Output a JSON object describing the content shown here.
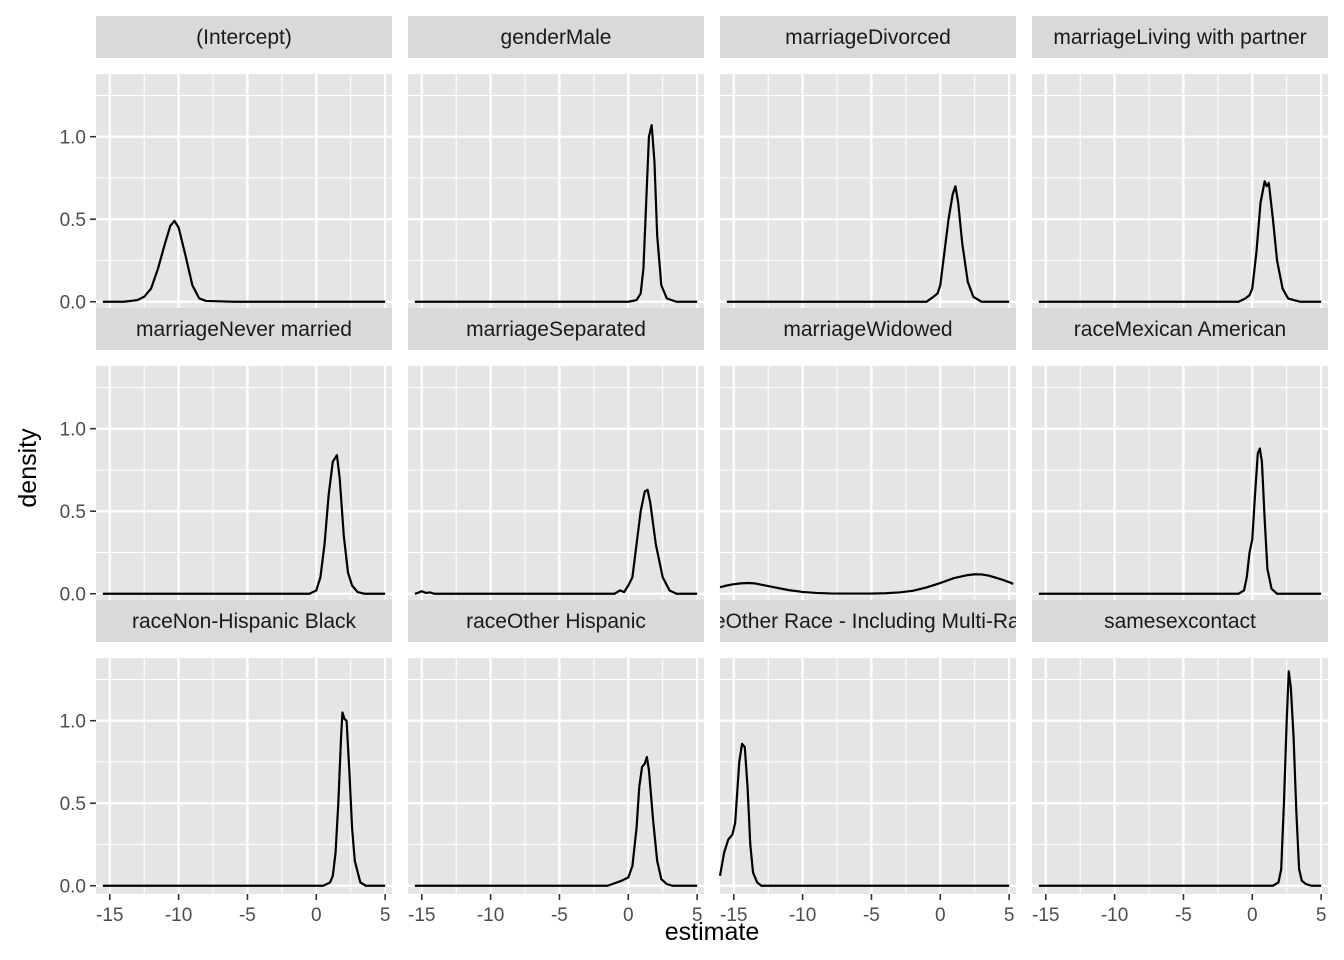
{
  "chart_data": {
    "type": "line",
    "subtype": "faceted-density",
    "xlabel": "estimate",
    "ylabel": "density",
    "xlim": [
      -16,
      5.5
    ],
    "ylim": [
      -0.05,
      1.38
    ],
    "x_ticks": [
      -15,
      -10,
      -5,
      0,
      5
    ],
    "x_tick_labels": [
      "-15",
      "-10",
      "-5",
      "0",
      "5"
    ],
    "y_ticks": [
      0,
      0.5,
      1
    ],
    "y_tick_labels": [
      "0.0",
      "0.5",
      "1.0"
    ],
    "grid": true,
    "panel_background": "#e5e5e5",
    "strip_background": "#d9d9d9",
    "grid_color": "#ffffff",
    "line_color": "#000000",
    "facets": [
      {
        "title": "(Intercept)",
        "x": [
          -15.5,
          -14,
          -13,
          -12.5,
          -12,
          -11.5,
          -11,
          -10.6,
          -10.3,
          -10,
          -9.5,
          -9,
          -8.5,
          -8,
          -6,
          0,
          5
        ],
        "y": [
          0,
          0,
          0.01,
          0.03,
          0.08,
          0.2,
          0.35,
          0.46,
          0.49,
          0.45,
          0.28,
          0.1,
          0.02,
          0.005,
          0,
          0,
          0
        ]
      },
      {
        "title": "genderMale",
        "x": [
          -15.5,
          0,
          0.6,
          0.9,
          1.1,
          1.3,
          1.5,
          1.7,
          1.9,
          2.1,
          2.4,
          2.8,
          3.5,
          5
        ],
        "y": [
          0,
          0,
          0.01,
          0.05,
          0.2,
          0.6,
          1.0,
          1.07,
          0.85,
          0.4,
          0.1,
          0.02,
          0,
          0
        ]
      },
      {
        "title": "marriageDivorced",
        "x": [
          -15.5,
          -1,
          -0.5,
          -0.2,
          0,
          0.3,
          0.6,
          0.9,
          1.1,
          1.3,
          1.6,
          2,
          2.4,
          3,
          5
        ],
        "y": [
          0,
          0,
          0.03,
          0.05,
          0.1,
          0.3,
          0.5,
          0.65,
          0.7,
          0.6,
          0.35,
          0.12,
          0.03,
          0,
          0
        ]
      },
      {
        "title": "marriageLiving with partner",
        "x": [
          -15.5,
          -1,
          -0.5,
          -0.2,
          0,
          0.3,
          0.6,
          0.9,
          1.05,
          1.2,
          1.5,
          1.8,
          2.2,
          2.6,
          3,
          3.5,
          5
        ],
        "y": [
          0,
          0,
          0.02,
          0.04,
          0.08,
          0.3,
          0.6,
          0.73,
          0.7,
          0.72,
          0.5,
          0.25,
          0.08,
          0.02,
          0.01,
          0,
          0
        ]
      },
      {
        "title": "marriageNever married",
        "x": [
          -15.5,
          -0.5,
          0,
          0.3,
          0.6,
          0.9,
          1.2,
          1.5,
          1.7,
          2,
          2.3,
          2.6,
          3,
          3.5,
          5
        ],
        "y": [
          0,
          0,
          0.02,
          0.1,
          0.3,
          0.6,
          0.8,
          0.84,
          0.7,
          0.35,
          0.13,
          0.05,
          0.01,
          0,
          0
        ]
      },
      {
        "title": "marriageSeparated",
        "x": [
          -15.5,
          -15.3,
          -15,
          -14.7,
          -14.4,
          -14.1,
          -13.5,
          -1,
          -0.6,
          -0.3,
          0,
          0.3,
          0.6,
          0.9,
          1.2,
          1.4,
          1.6,
          2,
          2.5,
          3,
          3.5,
          5
        ],
        "y": [
          0,
          0.005,
          0.015,
          0.005,
          0.008,
          0,
          0,
          0,
          0.02,
          0.01,
          0.05,
          0.1,
          0.3,
          0.5,
          0.62,
          0.63,
          0.55,
          0.3,
          0.1,
          0.02,
          0,
          0
        ]
      },
      {
        "title": "marriageWidowed",
        "x": [
          -16,
          -15.5,
          -15,
          -14.5,
          -14,
          -13.5,
          -13,
          -12,
          -11,
          -10,
          -9,
          -8,
          -7,
          -6,
          -5,
          -4,
          -3,
          -2,
          -1,
          0,
          1,
          2,
          2.5,
          3,
          3.5,
          4,
          4.5,
          5,
          5.3
        ],
        "y": [
          0.04,
          0.05,
          0.058,
          0.063,
          0.065,
          0.063,
          0.055,
          0.038,
          0.022,
          0.011,
          0.005,
          0.002,
          0.001,
          0.001,
          0.001,
          0.003,
          0.008,
          0.018,
          0.038,
          0.065,
          0.095,
          0.113,
          0.118,
          0.117,
          0.11,
          0.098,
          0.085,
          0.07,
          0.06
        ]
      },
      {
        "title": "raceMexican American",
        "x": [
          -15.5,
          -1,
          -0.6,
          -0.4,
          -0.2,
          0,
          0.2,
          0.4,
          0.55,
          0.7,
          0.9,
          1.1,
          1.4,
          1.8,
          2.5,
          5
        ],
        "y": [
          0,
          0,
          0.02,
          0.1,
          0.25,
          0.33,
          0.6,
          0.85,
          0.88,
          0.8,
          0.45,
          0.15,
          0.03,
          0,
          0,
          0
        ]
      },
      {
        "title": "raceNon-Hispanic Black",
        "x": [
          -15.5,
          0.5,
          1,
          1.2,
          1.4,
          1.6,
          1.8,
          1.9,
          2.05,
          2.2,
          2.4,
          2.6,
          2.8,
          3.2,
          3.6,
          5
        ],
        "y": [
          0,
          0,
          0.02,
          0.06,
          0.2,
          0.5,
          0.9,
          1.05,
          1.01,
          1.0,
          0.7,
          0.35,
          0.15,
          0.02,
          0,
          0
        ]
      },
      {
        "title": "raceOther Hispanic",
        "x": [
          -15.5,
          -1.5,
          -0.5,
          0,
          0.3,
          0.6,
          0.8,
          1,
          1.2,
          1.35,
          1.5,
          1.8,
          2.1,
          2.4,
          2.8,
          3.2,
          5
        ],
        "y": [
          0,
          0,
          0.03,
          0.05,
          0.12,
          0.35,
          0.6,
          0.72,
          0.74,
          0.78,
          0.7,
          0.4,
          0.15,
          0.04,
          0.01,
          0,
          0
        ]
      },
      {
        "title": "raceOther Race - Including Multi-Racial",
        "x": [
          -16,
          -15.7,
          -15.4,
          -15.1,
          -14.9,
          -14.6,
          -14.4,
          -14.2,
          -14,
          -13.8,
          -13.6,
          -13.3,
          -13,
          -12,
          0,
          5
        ],
        "y": [
          0.06,
          0.2,
          0.28,
          0.31,
          0.38,
          0.75,
          0.86,
          0.84,
          0.6,
          0.25,
          0.08,
          0.02,
          0,
          0,
          0,
          0
        ]
      },
      {
        "title": "samesexcontact",
        "x": [
          -15.5,
          1.5,
          1.9,
          2.1,
          2.3,
          2.5,
          2.65,
          2.8,
          3,
          3.2,
          3.4,
          3.6,
          3.9,
          4.3,
          5
        ],
        "y": [
          0,
          0,
          0.02,
          0.1,
          0.5,
          1.0,
          1.3,
          1.2,
          0.9,
          0.45,
          0.1,
          0.03,
          0.01,
          0,
          0
        ]
      }
    ]
  }
}
